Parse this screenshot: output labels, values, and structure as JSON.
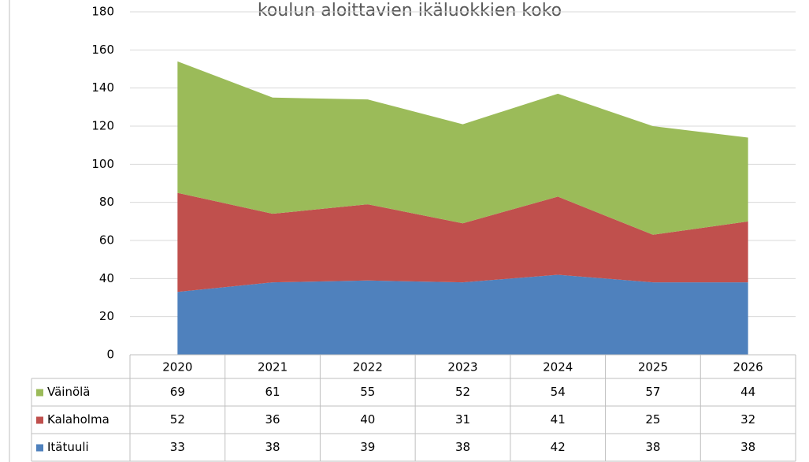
{
  "chart_data": {
    "type": "stacked-area",
    "title": "koulun aloittavien ikäluokkien koko",
    "categories": [
      "2020",
      "2021",
      "2022",
      "2023",
      "2024",
      "2025",
      "2026"
    ],
    "series": [
      {
        "name": "Itätuuli",
        "color": "#4f81bd",
        "values": [
          33,
          38,
          39,
          38,
          42,
          38,
          38
        ]
      },
      {
        "name": "Kalaholma",
        "color": "#c0504d",
        "values": [
          52,
          36,
          40,
          31,
          41,
          25,
          32
        ]
      },
      {
        "name": "Väinölä",
        "color": "#9bbb59",
        "values": [
          69,
          61,
          55,
          52,
          54,
          57,
          44
        ]
      }
    ],
    "ylim": [
      0,
      180
    ],
    "yticks": [
      0,
      20,
      40,
      60,
      80,
      100,
      120,
      140,
      160,
      180
    ],
    "grid": true
  }
}
